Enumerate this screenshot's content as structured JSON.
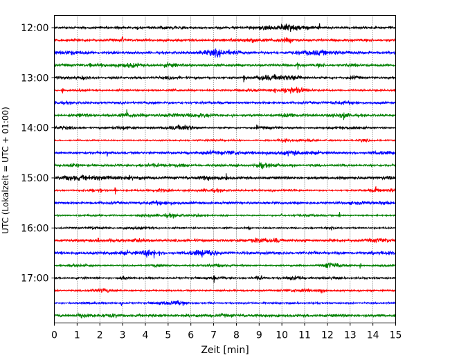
{
  "chart_data": {
    "type": "line",
    "title": "",
    "xlabel": "Zeit  [min]",
    "ylabel": "UTC (Lokalzeit = UTC + 01:00)",
    "xlim": [
      0,
      15
    ],
    "x_ticks": [
      "0",
      "1",
      "2",
      "3",
      "4",
      "5",
      "6",
      "7",
      "8",
      "9",
      "10",
      "11",
      "12",
      "13",
      "14",
      "15"
    ],
    "y_ticks": [
      "12:00",
      "13:00",
      "14:00",
      "15:00",
      "16:00",
      "17:00"
    ],
    "trace_interval_minutes": 15,
    "first_trace": "12:00",
    "last_trace": "17:45",
    "grid": "vertical dotted at each minute",
    "color_cycle": [
      "#000000",
      "#ff0000",
      "#0000ff",
      "#008000"
    ],
    "series": [
      {
        "time": "12:00",
        "color": "#000000"
      },
      {
        "time": "12:15",
        "color": "#ff0000"
      },
      {
        "time": "12:30",
        "color": "#0000ff"
      },
      {
        "time": "12:45",
        "color": "#008000"
      },
      {
        "time": "13:00",
        "color": "#000000"
      },
      {
        "time": "13:15",
        "color": "#ff0000"
      },
      {
        "time": "13:30",
        "color": "#0000ff"
      },
      {
        "time": "13:45",
        "color": "#008000"
      },
      {
        "time": "14:00",
        "color": "#000000"
      },
      {
        "time": "14:15",
        "color": "#ff0000"
      },
      {
        "time": "14:30",
        "color": "#0000ff"
      },
      {
        "time": "14:45",
        "color": "#008000"
      },
      {
        "time": "15:00",
        "color": "#000000"
      },
      {
        "time": "15:15",
        "color": "#ff0000"
      },
      {
        "time": "15:30",
        "color": "#0000ff"
      },
      {
        "time": "15:45",
        "color": "#008000"
      },
      {
        "time": "16:00",
        "color": "#000000"
      },
      {
        "time": "16:15",
        "color": "#ff0000"
      },
      {
        "time": "16:30",
        "color": "#0000ff"
      },
      {
        "time": "16:45",
        "color": "#008000"
      },
      {
        "time": "17:00",
        "color": "#000000"
      },
      {
        "time": "17:15",
        "color": "#ff0000"
      },
      {
        "time": "17:30",
        "color": "#0000ff"
      },
      {
        "time": "17:45",
        "color": "#008000"
      }
    ]
  }
}
